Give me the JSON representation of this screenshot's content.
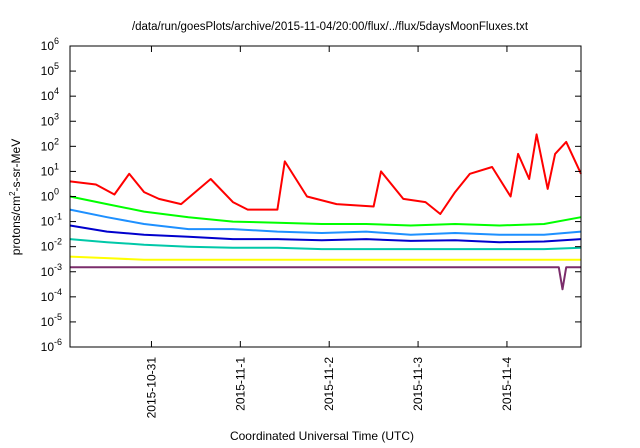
{
  "chart_data": {
    "type": "line",
    "title": "/data/run/goesPlots/archive/2015-11-04/20:00/flux/../flux/5daysMoonFluxes.txt",
    "xlabel": "Coordinated Universal Time (UTC)",
    "ylabel": "protons/cm2-s-sr-MeV",
    "ylabel_parts": {
      "pre": "protons/cm",
      "sup": "2",
      "post": "-s-sr-MeV"
    },
    "yscale": "log",
    "ylim": [
      1e-06,
      1000000.0
    ],
    "xlim": [
      "2015-10-30T02:00",
      "2015-11-04T20:00"
    ],
    "grid": false,
    "legend": "none",
    "x_ticks": [
      "2015-10-31",
      "2015-11-1",
      "2015-11-2",
      "2015-11-3",
      "2015-11-4"
    ],
    "y_ticks": [
      {
        "value": 1e-06,
        "base": "10",
        "exp": "-6"
      },
      {
        "value": 1e-05,
        "base": "10",
        "exp": "-5"
      },
      {
        "value": 0.0001,
        "base": "10",
        "exp": "-4"
      },
      {
        "value": 0.001,
        "base": "10",
        "exp": "-3"
      },
      {
        "value": 0.01,
        "base": "10",
        "exp": "-2"
      },
      {
        "value": 0.1,
        "base": "10",
        "exp": "-1"
      },
      {
        "value": 1,
        "base": "10",
        "exp": "0"
      },
      {
        "value": 10.0,
        "base": "10",
        "exp": "1"
      },
      {
        "value": 100.0,
        "base": "10",
        "exp": "2"
      },
      {
        "value": 1000.0,
        "base": "10",
        "exp": "3"
      },
      {
        "value": 10000.0,
        "base": "10",
        "exp": "4"
      },
      {
        "value": 100000.0,
        "base": "10",
        "exp": "5"
      },
      {
        "value": 1000000.0,
        "base": "10",
        "exp": "6"
      }
    ],
    "series": [
      {
        "color": "#ff0000",
        "x": [
          "2015-10-30T02:00",
          "2015-10-30T09:00",
          "2015-10-30T14:00",
          "2015-10-30T18:00",
          "2015-10-30T22:00",
          "2015-10-31T02:00",
          "2015-10-31T08:00",
          "2015-10-31T16:00",
          "2015-10-31T22:00",
          "2015-11-01T02:00",
          "2015-11-01T10:00",
          "2015-11-01T12:00",
          "2015-11-01T18:00",
          "2015-11-02T02:00",
          "2015-11-02T12:00",
          "2015-11-02T14:00",
          "2015-11-02T20:00",
          "2015-11-03T02:00",
          "2015-11-03T06:00",
          "2015-11-03T10:00",
          "2015-11-03T14:00",
          "2015-11-03T20:00",
          "2015-11-04T01:00",
          "2015-11-04T03:00",
          "2015-11-04T06:00",
          "2015-11-04T08:00",
          "2015-11-04T11:00",
          "2015-11-04T13:00",
          "2015-11-04T16:00",
          "2015-11-04T20:00"
        ],
        "values": [
          4,
          3,
          1.2,
          8,
          1.5,
          0.8,
          0.5,
          5,
          0.6,
          0.3,
          0.3,
          25,
          1,
          0.5,
          0.4,
          10,
          0.8,
          0.6,
          0.2,
          1.5,
          8,
          15,
          1,
          50,
          5,
          300,
          2,
          50,
          150,
          8
        ]
      },
      {
        "color": "#00ff00",
        "x": [
          "2015-10-30T02:00",
          "2015-10-30T12:00",
          "2015-10-30T22:00",
          "2015-10-31T10:00",
          "2015-10-31T22:00",
          "2015-11-01T10:00",
          "2015-11-01T22:00",
          "2015-11-02T10:00",
          "2015-11-02T22:00",
          "2015-11-03T10:00",
          "2015-11-03T22:00",
          "2015-11-04T10:00",
          "2015-11-04T20:00"
        ],
        "values": [
          1,
          0.5,
          0.25,
          0.15,
          0.1,
          0.09,
          0.08,
          0.08,
          0.07,
          0.08,
          0.07,
          0.08,
          0.15
        ]
      },
      {
        "color": "#1e90ff",
        "x": [
          "2015-10-30T02:00",
          "2015-10-30T12:00",
          "2015-10-30T22:00",
          "2015-10-31T10:00",
          "2015-10-31T22:00",
          "2015-11-01T10:00",
          "2015-11-01T22:00",
          "2015-11-02T10:00",
          "2015-11-02T22:00",
          "2015-11-03T10:00",
          "2015-11-03T22:00",
          "2015-11-04T10:00",
          "2015-11-04T20:00"
        ],
        "values": [
          0.3,
          0.15,
          0.08,
          0.05,
          0.05,
          0.04,
          0.035,
          0.04,
          0.03,
          0.035,
          0.03,
          0.03,
          0.04
        ]
      },
      {
        "color": "#0000cd",
        "x": [
          "2015-10-30T02:00",
          "2015-10-30T12:00",
          "2015-10-30T22:00",
          "2015-10-31T10:00",
          "2015-10-31T22:00",
          "2015-11-01T10:00",
          "2015-11-01T22:00",
          "2015-11-02T10:00",
          "2015-11-02T22:00",
          "2015-11-03T10:00",
          "2015-11-03T22:00",
          "2015-11-04T10:00",
          "2015-11-04T20:00"
        ],
        "values": [
          0.07,
          0.04,
          0.03,
          0.025,
          0.02,
          0.02,
          0.018,
          0.02,
          0.017,
          0.018,
          0.015,
          0.016,
          0.02
        ]
      },
      {
        "color": "#00c8a8",
        "x": [
          "2015-10-30T02:00",
          "2015-10-30T12:00",
          "2015-10-30T22:00",
          "2015-10-31T10:00",
          "2015-10-31T22:00",
          "2015-11-01T10:00",
          "2015-11-01T22:00",
          "2015-11-02T10:00",
          "2015-11-02T22:00",
          "2015-11-03T10:00",
          "2015-11-03T22:00",
          "2015-11-04T10:00",
          "2015-11-04T20:00"
        ],
        "values": [
          0.02,
          0.015,
          0.012,
          0.01,
          0.009,
          0.009,
          0.008,
          0.008,
          0.008,
          0.008,
          0.008,
          0.008,
          0.009
        ]
      },
      {
        "color": "#ffff00",
        "x": [
          "2015-10-30T02:00",
          "2015-10-30T12:00",
          "2015-10-30T22:00",
          "2015-10-31T10:00",
          "2015-10-31T22:00",
          "2015-11-01T10:00",
          "2015-11-01T22:00",
          "2015-11-02T10:00",
          "2015-11-02T22:00",
          "2015-11-03T10:00",
          "2015-11-03T22:00",
          "2015-11-04T10:00",
          "2015-11-04T20:00"
        ],
        "values": [
          0.004,
          0.0035,
          0.003,
          0.003,
          0.003,
          0.003,
          0.003,
          0.003,
          0.003,
          0.003,
          0.003,
          0.003,
          0.003
        ]
      },
      {
        "color": "#7b2d6b",
        "x": [
          "2015-10-30T02:00",
          "2015-10-30T12:00",
          "2015-10-30T22:00",
          "2015-10-31T10:00",
          "2015-10-31T22:00",
          "2015-11-01T10:00",
          "2015-11-01T22:00",
          "2015-11-02T10:00",
          "2015-11-02T22:00",
          "2015-11-03T10:00",
          "2015-11-03T22:00",
          "2015-11-04T10:00",
          "2015-11-04T14:00",
          "2015-11-04T15:00",
          "2015-11-04T16:00",
          "2015-11-04T20:00"
        ],
        "values": [
          0.0015,
          0.0015,
          0.0015,
          0.0015,
          0.0015,
          0.0015,
          0.0015,
          0.0015,
          0.0015,
          0.0015,
          0.0015,
          0.0015,
          0.0015,
          0.0002,
          0.0015,
          0.0015
        ]
      }
    ]
  }
}
